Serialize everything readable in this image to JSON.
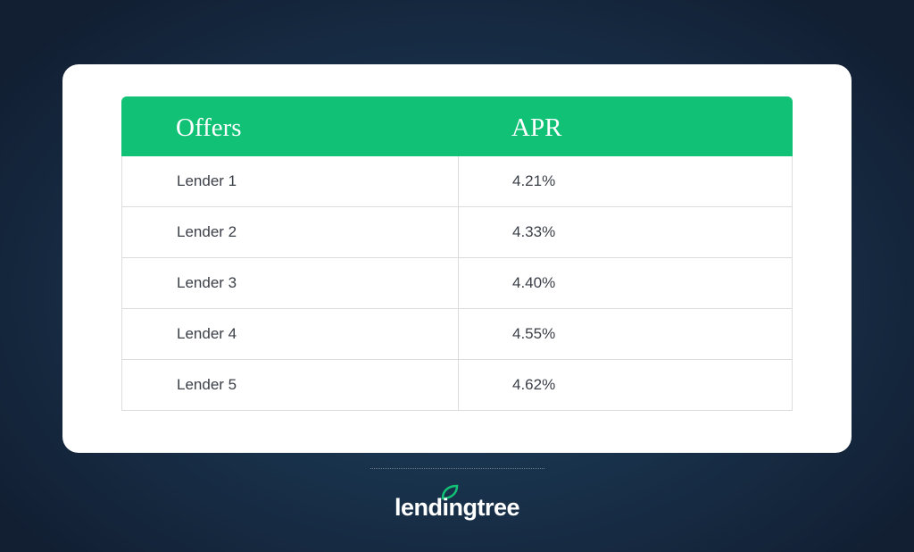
{
  "table": {
    "header": [
      "Offers",
      "APR"
    ],
    "rows": [
      [
        "Lender 1",
        "4.21%"
      ],
      [
        "Lender 2",
        "4.33%"
      ],
      [
        "Lender 3",
        "4.40%"
      ],
      [
        "Lender 4",
        "4.55%"
      ],
      [
        "Lender 5",
        "4.62%"
      ]
    ]
  },
  "logo": {
    "text": "lendingtree"
  }
}
